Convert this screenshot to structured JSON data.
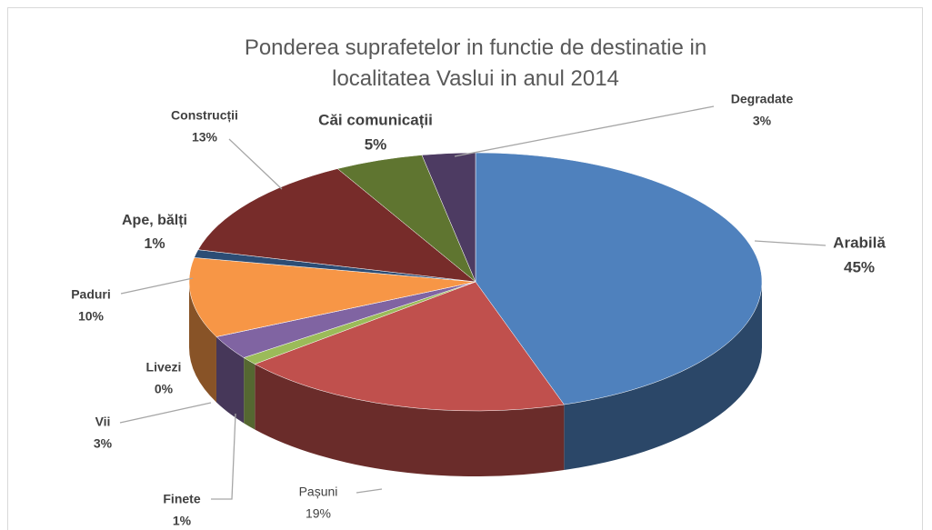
{
  "chart_data": {
    "type": "pie3d",
    "title": "Ponderea suprafetelor in functie de destinatie in localitatea Vaslui in anul 2014",
    "categories": [
      "Arabilă",
      "Pașuni",
      "Finete",
      "Vii",
      "Livezi",
      "Paduri",
      "Ape, bălți",
      "Construcții",
      "Căi comunicații",
      "Degradate"
    ],
    "values": [
      45,
      19,
      1,
      3,
      0,
      10,
      1,
      13,
      5,
      3
    ],
    "value_labels": [
      "45%",
      "19%",
      "1%",
      "3%",
      "0%",
      "10%",
      "1%",
      "13%",
      "5%",
      "3%"
    ],
    "colors": [
      "#4f81bd",
      "#c0504d",
      "#9bbb59",
      "#8064a2",
      "#4bacc6",
      "#f79646",
      "#2c4d75",
      "#772c2a",
      "#5f7530",
      "#4d3b62"
    ]
  }
}
